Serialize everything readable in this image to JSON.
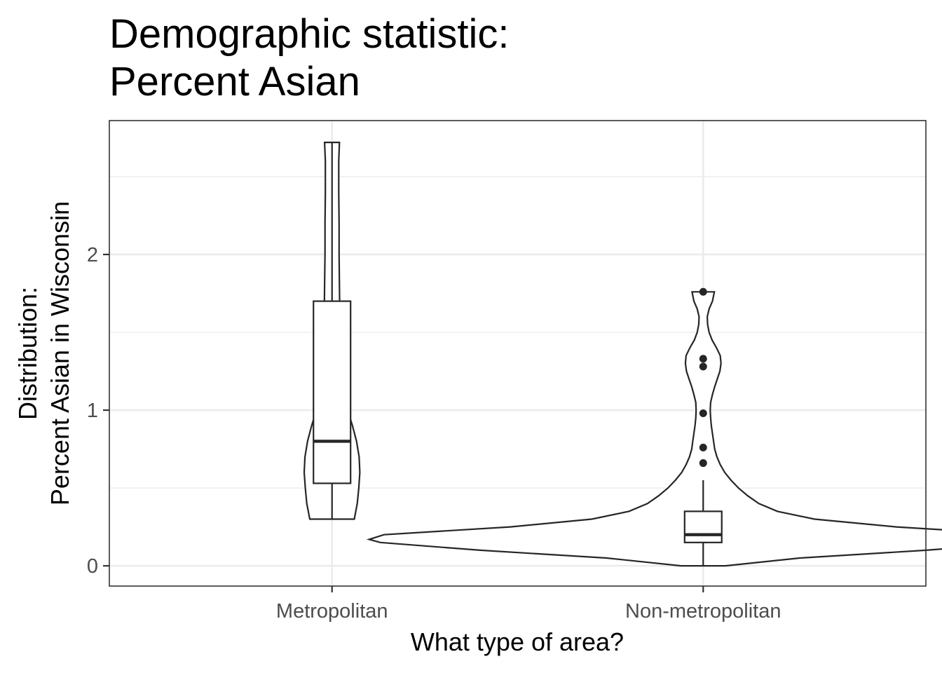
{
  "chart_data": {
    "type": "violin",
    "title_lines": [
      "Demographic statistic:",
      "Percent Asian"
    ],
    "xlabel": "What type of area?",
    "ylabel_lines": [
      "Distribution:",
      "Percent Asian in Wisconsin"
    ],
    "categories": [
      "Metropolitan",
      "Non-metropolitan"
    ],
    "ylim": [
      -0.13,
      2.86
    ],
    "y_ticks": [
      0,
      1,
      2
    ],
    "y_tick_labels": [
      "0",
      "1",
      "2"
    ],
    "grid": true,
    "groups": [
      {
        "category": "Metropolitan",
        "violin_min": 0.3,
        "violin_max": 2.72,
        "density_half_widths": [
          [
            0.3,
            0.06
          ],
          [
            0.4,
            0.068
          ],
          [
            0.5,
            0.072
          ],
          [
            0.6,
            0.075
          ],
          [
            0.7,
            0.073
          ],
          [
            0.8,
            0.066
          ],
          [
            0.9,
            0.055
          ],
          [
            1.0,
            0.042
          ],
          [
            1.1,
            0.032
          ],
          [
            1.2,
            0.026
          ],
          [
            1.4,
            0.022
          ],
          [
            1.6,
            0.021
          ],
          [
            1.8,
            0.02
          ],
          [
            2.0,
            0.019
          ],
          [
            2.2,
            0.019
          ],
          [
            2.4,
            0.018
          ],
          [
            2.6,
            0.018
          ],
          [
            2.72,
            0.02
          ]
        ],
        "box": {
          "q1": 0.53,
          "median": 0.8,
          "q3": 1.7,
          "whisker_low": 0.3,
          "whisker_high": 2.72
        },
        "outliers": []
      },
      {
        "category": "Non-metropolitan",
        "violin_min": 0.0,
        "violin_max": 1.76,
        "density_half_widths": [
          [
            0.0,
            0.06
          ],
          [
            0.05,
            0.26
          ],
          [
            0.1,
            0.6
          ],
          [
            0.15,
            0.87
          ],
          [
            0.17,
            0.9
          ],
          [
            0.2,
            0.86
          ],
          [
            0.25,
            0.52
          ],
          [
            0.3,
            0.3
          ],
          [
            0.35,
            0.2
          ],
          [
            0.4,
            0.15
          ],
          [
            0.45,
            0.12
          ],
          [
            0.5,
            0.095
          ],
          [
            0.55,
            0.075
          ],
          [
            0.6,
            0.058
          ],
          [
            0.65,
            0.046
          ],
          [
            0.7,
            0.037
          ],
          [
            0.75,
            0.031
          ],
          [
            0.8,
            0.028
          ],
          [
            0.85,
            0.025
          ],
          [
            0.9,
            0.022
          ],
          [
            0.95,
            0.02
          ],
          [
            1.0,
            0.019
          ],
          [
            1.05,
            0.02
          ],
          [
            1.1,
            0.025
          ],
          [
            1.15,
            0.031
          ],
          [
            1.2,
            0.038
          ],
          [
            1.25,
            0.045
          ],
          [
            1.3,
            0.048
          ],
          [
            1.35,
            0.046
          ],
          [
            1.4,
            0.036
          ],
          [
            1.45,
            0.024
          ],
          [
            1.5,
            0.016
          ],
          [
            1.55,
            0.012
          ],
          [
            1.6,
            0.011
          ],
          [
            1.65,
            0.016
          ],
          [
            1.7,
            0.025
          ],
          [
            1.76,
            0.03
          ]
        ],
        "box": {
          "q1": 0.15,
          "median": 0.2,
          "q3": 0.35,
          "whisker_low": 0.0,
          "whisker_high": 0.55
        },
        "outliers": [
          0.66,
          0.76,
          0.98,
          1.28,
          1.33,
          1.76
        ]
      }
    ]
  }
}
